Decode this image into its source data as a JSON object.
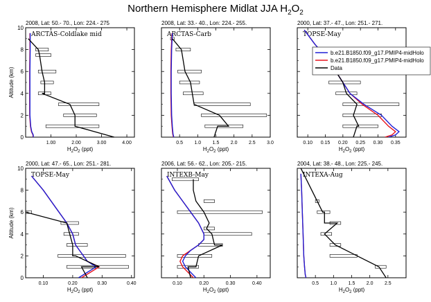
{
  "figure": {
    "title_main": "Northern Hemisphere Midlat JJA H",
    "title_sub": "2",
    "title_tail": "O",
    "title_sub2": "2"
  },
  "colors": {
    "blue": "#1f1fd6",
    "red": "#e8141e",
    "data": "#000000",
    "box": "#000000"
  },
  "legend": {
    "entries": [
      {
        "label": "b.e21.B1850.f09_g17.PMIP4-midHolo",
        "color": "#1f1fd6"
      },
      {
        "label": "b.e21.B1850.f09_g17.PMIP4-midHolo",
        "color": "#e8141e"
      },
      {
        "label": "Data",
        "color": "#000000"
      }
    ]
  },
  "chart_data": [
    {
      "type": "line",
      "header": "2008, Lat:  50.- 70., Lon: 224.- 275",
      "campaign": "ARCTAS-Coldlake mid",
      "xlabel": "H2O2 (ppt)",
      "ylabel": "Altitude (km)",
      "xlim": [
        0.0,
        4.3
      ],
      "ylim": [
        0,
        10
      ],
      "xticks": [
        1.0,
        2.0,
        3.0,
        4.0
      ],
      "xticklabels": [
        "1.00",
        "2.00",
        "3.00",
        "4.00"
      ],
      "yticks": [
        0,
        2,
        4,
        6,
        8,
        10
      ],
      "yticklabels": [
        "0",
        "2",
        "4",
        "6",
        "8",
        "10"
      ],
      "data": {
        "x": [
          0.1,
          0.5,
          0.55,
          0.65,
          0.75,
          0.75,
          0.65,
          1.75,
          1.95,
          1.95,
          3.5
        ],
        "y": [
          9.0,
          8.0,
          7.5,
          6.0,
          5.0,
          4.0,
          4.0,
          3.0,
          2.0,
          1.0,
          0.0
        ]
      },
      "boxes": [
        [
          0.4,
          0.9,
          8.0
        ],
        [
          0.4,
          1.0,
          7.5
        ],
        [
          0.5,
          1.2,
          6.0
        ],
        [
          0.6,
          1.1,
          5.0
        ],
        [
          0.5,
          1.0,
          4.0
        ],
        [
          1.3,
          2.9,
          3.0
        ],
        [
          1.5,
          2.8,
          2.0
        ],
        [
          0.8,
          2.9,
          1.0
        ]
      ],
      "model_blue": {
        "x": [
          0.18,
          0.18,
          0.17,
          0.17,
          0.17,
          0.2,
          0.24,
          0.3,
          0.3
        ],
        "y": [
          9.5,
          8.0,
          6.0,
          4.0,
          2.0,
          1.0,
          0.5,
          0.2,
          0.0
        ]
      },
      "model_red": {
        "x": [
          0.17,
          0.17,
          0.16,
          0.16,
          0.16,
          0.19,
          0.23,
          0.29,
          0.29
        ],
        "y": [
          9.5,
          8.0,
          6.0,
          4.0,
          2.0,
          1.0,
          0.5,
          0.2,
          0.0
        ]
      },
      "legend": false
    },
    {
      "type": "line",
      "header": "2008, Lat:  33.- 40., Lon: 224.- 255.",
      "campaign": "ARCTAS-Carb",
      "xlabel": "H2O2 (ppt)",
      "ylabel": "",
      "xlim": [
        0.0,
        3.0
      ],
      "ylim": [
        0,
        10
      ],
      "xticks": [
        0.5,
        1.0,
        1.5,
        2.0,
        2.5,
        3.0
      ],
      "xticklabels": [
        "0.5",
        "1.0",
        "1.5",
        "2.0",
        "2.5",
        "3.0"
      ],
      "yticks": [
        0,
        2,
        4,
        6,
        8,
        10
      ],
      "yticklabels": [
        "",
        "",
        "",
        "",
        "",
        ""
      ],
      "data": {
        "x": [
          0.3,
          0.55,
          0.65,
          0.8,
          0.85,
          0.9,
          1.6,
          1.85,
          1.55,
          1.45
        ],
        "y": [
          9.0,
          8.0,
          6.0,
          5.0,
          4.0,
          3.0,
          2.0,
          1.0,
          1.0,
          0.0
        ]
      },
      "boxes": [
        [
          0.25,
          0.35,
          9.0
        ],
        [
          0.4,
          0.8,
          8.0
        ],
        [
          0.45,
          1.1,
          6.0
        ],
        [
          0.5,
          1.05,
          5.0
        ],
        [
          0.6,
          1.15,
          4.0
        ],
        [
          0.9,
          2.45,
          3.0
        ],
        [
          1.1,
          2.9,
          2.0
        ],
        [
          1.2,
          2.25,
          1.0
        ]
      ],
      "model_blue": {
        "x": [
          0.3,
          0.28,
          0.27,
          0.27,
          0.28,
          0.3,
          0.32,
          0.34
        ],
        "y": [
          9.5,
          8.0,
          6.0,
          4.0,
          2.0,
          1.0,
          0.3,
          0.0
        ]
      },
      "model_red": {
        "x": [
          0.29,
          0.27,
          0.26,
          0.26,
          0.27,
          0.29,
          0.31,
          0.33
        ],
        "y": [
          9.5,
          8.0,
          6.0,
          4.0,
          2.0,
          1.0,
          0.3,
          0.0
        ]
      },
      "legend": false
    },
    {
      "type": "line",
      "header": "2000, Lat:  37.- 47., Lon: 251.- 271.",
      "campaign": "TOPSE-May",
      "xlabel": "H2O2 (ppt)",
      "ylabel": "",
      "xlim": [
        0.07,
        0.38
      ],
      "ylim": [
        0,
        10
      ],
      "xticks": [
        0.1,
        0.15,
        0.2,
        0.25,
        0.3,
        0.35
      ],
      "xticklabels": [
        "0.10",
        "0.15",
        "0.20",
        "0.25",
        "0.30",
        "0.35"
      ],
      "yticks": [
        0,
        2,
        4,
        6,
        8,
        10
      ],
      "yticklabels": [
        "",
        "",
        "",
        "",
        "",
        ""
      ],
      "data": {
        "x": [
          0.19,
          0.18,
          0.2,
          0.21,
          0.24,
          0.23,
          0.245,
          0.24,
          0.23
        ],
        "y": [
          7.0,
          6.0,
          5.0,
          4.0,
          3.0,
          2.0,
          1.0,
          1.0,
          0.0
        ]
      },
      "boxes": [
        [
          0.12,
          0.26,
          7.0
        ],
        [
          0.14,
          0.24,
          6.0
        ],
        [
          0.16,
          0.25,
          5.0
        ],
        [
          0.18,
          0.24,
          4.0
        ],
        [
          0.2,
          0.36,
          3.0
        ],
        [
          0.2,
          0.31,
          2.0
        ],
        [
          0.2,
          0.3,
          1.0
        ]
      ],
      "model_blue": {
        "x": [
          0.09,
          0.12,
          0.16,
          0.19,
          0.22,
          0.26,
          0.31,
          0.34,
          0.36,
          0.35,
          0.33
        ],
        "y": [
          9.8,
          8.5,
          7.0,
          5.5,
          4.0,
          3.0,
          2.0,
          1.0,
          0.5,
          0.2,
          0.0
        ]
      },
      "model_red": {
        "x": [
          0.09,
          0.12,
          0.16,
          0.19,
          0.22,
          0.255,
          0.3,
          0.33,
          0.35,
          0.34,
          0.32
        ],
        "y": [
          9.8,
          8.5,
          7.0,
          5.5,
          4.0,
          3.0,
          2.0,
          1.0,
          0.5,
          0.2,
          0.0
        ]
      },
      "legend": true
    },
    {
      "type": "line",
      "header": "2000, Lat:  47.- 65., Lon: 251.- 281.",
      "campaign": "TOPSE-May",
      "xlabel": "H2O2 (ppt)",
      "ylabel": "Altitude (km)",
      "xlim": [
        0.04,
        0.41
      ],
      "ylim": [
        0,
        10
      ],
      "xticks": [
        0.1,
        0.2,
        0.3,
        0.4
      ],
      "xticklabels": [
        "0.10",
        "0.20",
        "0.30",
        "0.40"
      ],
      "yticks": [
        0,
        2,
        4,
        6,
        8,
        10
      ],
      "yticklabels": [
        "0",
        "2",
        "4",
        "6",
        "8",
        "10"
      ],
      "data": {
        "x": [
          0.04,
          0.18,
          0.19,
          0.2,
          0.2,
          0.21,
          0.29,
          0.23,
          0.25
        ],
        "y": [
          6.0,
          5.0,
          4.0,
          3.0,
          2.0,
          2.0,
          1.0,
          1.0,
          0.0
        ]
      },
      "boxes": [
        [
          0.04,
          0.06,
          6.0
        ],
        [
          0.16,
          0.22,
          5.0
        ],
        [
          0.17,
          0.22,
          4.0
        ],
        [
          0.18,
          0.25,
          3.0
        ],
        [
          0.15,
          0.38,
          2.0
        ],
        [
          0.18,
          0.39,
          1.0
        ]
      ],
      "model_blue": {
        "x": [
          0.06,
          0.1,
          0.14,
          0.18,
          0.2,
          0.21,
          0.25,
          0.28,
          0.25,
          0.22
        ],
        "y": [
          9.3,
          8.0,
          6.5,
          5.0,
          4.0,
          3.0,
          1.5,
          1.0,
          0.5,
          0.0
        ]
      },
      "model_red": {
        "x": [
          0.06,
          0.1,
          0.14,
          0.18,
          0.2,
          0.21,
          0.25,
          0.29,
          0.26,
          0.23
        ],
        "y": [
          9.3,
          8.0,
          6.5,
          5.0,
          4.0,
          3.0,
          1.5,
          1.0,
          0.5,
          0.0
        ]
      },
      "legend": false
    },
    {
      "type": "line",
      "header": "2006, Lat:  56.- 62., Lon: 205.- 215.",
      "campaign": "INTEXB-May",
      "xlabel": "H2O2 (ppt)",
      "ylabel": "",
      "xlim": [
        0.04,
        0.45
      ],
      "ylim": [
        0,
        10
      ],
      "xticks": [
        0.1,
        0.2,
        0.3,
        0.4
      ],
      "xticklabels": [
        "0.10",
        "0.20",
        "0.30",
        "0.40"
      ],
      "yticks": [
        0,
        2,
        4,
        6,
        8,
        10
      ],
      "yticklabels": [
        "",
        "",
        "",
        "",
        "",
        ""
      ],
      "data": {
        "x": [
          0.16,
          0.16,
          0.17,
          0.2,
          0.22,
          0.21,
          0.23,
          0.24,
          0.27,
          0.18,
          0.17,
          0.14,
          0.15
        ],
        "y": [
          9.0,
          8.0,
          7.0,
          6.0,
          5.0,
          4.5,
          4.0,
          3.0,
          3.0,
          2.0,
          1.0,
          1.0,
          0.0
        ]
      },
      "boxes": [
        [
          0.08,
          0.18,
          9.0
        ],
        [
          0.2,
          0.24,
          7.0
        ],
        [
          0.1,
          0.42,
          6.0
        ],
        [
          0.2,
          0.24,
          4.5
        ],
        [
          0.2,
          0.38,
          4.0
        ],
        [
          0.18,
          0.27,
          3.0
        ],
        [
          0.1,
          0.23,
          2.0
        ],
        [
          0.1,
          0.18,
          1.0
        ]
      ],
      "model_blue": {
        "x": [
          0.06,
          0.09,
          0.12,
          0.15,
          0.18,
          0.2,
          0.2,
          0.18,
          0.15,
          0.13,
          0.12,
          0.13,
          0.15,
          0.17
        ],
        "y": [
          9.3,
          8.0,
          7.0,
          6.0,
          5.0,
          4.0,
          3.5,
          3.0,
          2.5,
          2.0,
          1.5,
          1.0,
          0.5,
          0.0
        ]
      },
      "model_red": {
        "x": [
          0.06,
          0.09,
          0.12,
          0.15,
          0.18,
          0.2,
          0.2,
          0.18,
          0.15,
          0.12,
          0.11,
          0.12,
          0.14,
          0.16
        ],
        "y": [
          9.3,
          8.0,
          7.0,
          6.0,
          5.0,
          4.0,
          3.5,
          3.0,
          2.5,
          2.0,
          1.5,
          1.0,
          0.5,
          0.0
        ]
      },
      "legend": false
    },
    {
      "type": "line",
      "header": "2004, Lat:  38.- 48., Lon: 225.- 245.",
      "campaign": "INTEXA-Aug",
      "xlabel": "H2O2 (ppt)",
      "ylabel": "",
      "xlim": [
        0.0,
        3.0
      ],
      "ylim": [
        0,
        10
      ],
      "xticks": [
        0.5,
        1.0,
        1.5,
        2.0,
        2.5
      ],
      "xticklabels": [
        "0.5",
        "1.0",
        "1.5",
        "2.0",
        "2.5"
      ],
      "yticks": [
        0,
        2,
        4,
        6,
        8,
        10
      ],
      "yticklabels": [
        "",
        "",
        "",
        "",
        "",
        ""
      ],
      "data": {
        "x": [
          0.1,
          0.55,
          0.7,
          0.75,
          0.75,
          1.1,
          0.75,
          1.05,
          1.65,
          2.25,
          2.45
        ],
        "y": [
          10.0,
          7.0,
          6.0,
          6.0,
          5.0,
          5.0,
          4.0,
          3.0,
          2.0,
          1.0,
          0.0
        ]
      },
      "boxes": [
        [
          0.5,
          0.6,
          7.0
        ],
        [
          0.55,
          0.9,
          6.0
        ],
        [
          0.9,
          1.2,
          5.0
        ],
        [
          0.65,
          0.95,
          4.0
        ],
        [
          0.9,
          1.2,
          3.0
        ],
        [
          0.9,
          1.65,
          2.0
        ],
        [
          2.15,
          2.45,
          1.0
        ]
      ],
      "model_blue": {
        "x": [
          0.1,
          0.12,
          0.14,
          0.16,
          0.18,
          0.2,
          0.22,
          0.24
        ],
        "y": [
          9.5,
          8.0,
          6.0,
          4.0,
          2.0,
          1.0,
          0.3,
          0.0
        ]
      },
      "model_red": {
        "x": [
          0.1,
          0.12,
          0.14,
          0.16,
          0.18,
          0.2,
          0.22,
          0.24
        ],
        "y": [
          9.5,
          8.0,
          6.0,
          4.0,
          2.0,
          1.0,
          0.3,
          0.0
        ]
      },
      "legend": false
    }
  ]
}
